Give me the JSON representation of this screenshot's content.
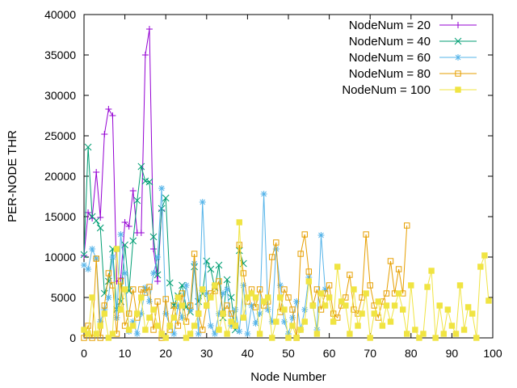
{
  "chart_data": {
    "type": "line",
    "title": "",
    "xlabel": "Node Number",
    "ylabel": "PER-NODE THR",
    "xlim": [
      0,
      100
    ],
    "ylim": [
      0,
      40000
    ],
    "xticks": [
      0,
      10,
      20,
      30,
      40,
      50,
      60,
      70,
      80,
      90,
      100
    ],
    "yticks": [
      0,
      5000,
      10000,
      15000,
      20000,
      25000,
      30000,
      35000,
      40000
    ],
    "grid": false,
    "legend_position": "top-right",
    "series": [
      {
        "name": "NodeNum = 20",
        "color": "#9400d3",
        "marker": "plus",
        "x": [
          0,
          1,
          2,
          3,
          4,
          5,
          6,
          7,
          8,
          9,
          10,
          11,
          12,
          13,
          14,
          15,
          16,
          17,
          18,
          19
        ],
        "y": [
          10200,
          15500,
          14800,
          20500,
          14900,
          25200,
          28300,
          27500,
          7000,
          7400,
          14300,
          13800,
          18200,
          13000,
          13000,
          35000,
          38200,
          11000,
          7000,
          15800
        ]
      },
      {
        "name": "NodeNum = 40",
        "color": "#009e73",
        "marker": "x",
        "x": [
          0,
          1,
          2,
          3,
          4,
          5,
          6,
          7,
          8,
          9,
          10,
          11,
          12,
          13,
          14,
          15,
          16,
          17,
          18,
          19,
          20,
          21,
          22,
          23,
          24,
          25,
          26,
          27,
          28,
          29,
          30,
          31,
          32,
          33,
          34,
          35,
          36,
          37,
          38,
          39
        ],
        "y": [
          10300,
          23600,
          15000,
          14500,
          13600,
          5500,
          7000,
          11000,
          3500,
          4500,
          11500,
          5800,
          12000,
          17000,
          21200,
          19400,
          19300,
          12500,
          7800,
          16000,
          17300,
          6800,
          4000,
          5200,
          6500,
          3800,
          3200,
          8800,
          4500,
          5500,
          9500,
          8500,
          6200,
          9000,
          2500,
          7200,
          5000,
          1000,
          10800,
          9200
        ]
      },
      {
        "name": "NodeNum = 60",
        "color": "#56b4e9",
        "marker": "star",
        "x": [
          0,
          1,
          2,
          3,
          4,
          5,
          6,
          7,
          8,
          9,
          10,
          11,
          12,
          13,
          14,
          15,
          16,
          17,
          18,
          19,
          20,
          21,
          22,
          23,
          24,
          25,
          26,
          27,
          28,
          29,
          30,
          31,
          32,
          33,
          34,
          35,
          36,
          37,
          38,
          39,
          40,
          41,
          42,
          43,
          44,
          45,
          46,
          47,
          48,
          49,
          50,
          51,
          52,
          53,
          54,
          55,
          56,
          57,
          58,
          59
        ],
        "y": [
          9000,
          8500,
          11000,
          9800,
          2000,
          3500,
          5000,
          10000,
          2500,
          12800,
          8000,
          800,
          2000,
          500,
          3000,
          6200,
          4500,
          8000,
          10000,
          18500,
          3000,
          1500,
          500,
          4000,
          2500,
          6500,
          3500,
          9200,
          500,
          16800,
          5500,
          1500,
          500,
          3000,
          5500,
          6000,
          1500,
          3500,
          800,
          6500,
          500,
          4000,
          1800,
          3000,
          17800,
          3500,
          2000,
          11000,
          6500,
          2000,
          500,
          2500,
          4500,
          1000,
          3500,
          7500,
          4000,
          1000,
          12700,
          6000
        ]
      },
      {
        "name": "NodeNum = 80",
        "color": "#e69f00",
        "marker": "square",
        "x": [
          0,
          1,
          2,
          3,
          4,
          5,
          6,
          7,
          8,
          9,
          10,
          11,
          12,
          13,
          14,
          15,
          16,
          17,
          18,
          19,
          20,
          21,
          22,
          23,
          24,
          25,
          26,
          27,
          28,
          29,
          30,
          31,
          32,
          33,
          34,
          35,
          36,
          37,
          38,
          39,
          40,
          41,
          42,
          43,
          44,
          45,
          46,
          47,
          48,
          49,
          50,
          51,
          52,
          53,
          54,
          55,
          56,
          57,
          58,
          59,
          60,
          61,
          62,
          63,
          64,
          65,
          66,
          67,
          68,
          69,
          70,
          71,
          72,
          73,
          74,
          75,
          76,
          77,
          78,
          79
        ],
        "y": [
          0,
          1500,
          0,
          9800,
          0,
          4000,
          8000,
          6500,
          500,
          7000,
          1500,
          3000,
          6000,
          2500,
          6000,
          5600,
          6300,
          1000,
          4500,
          0,
          4800,
          1000,
          4000,
          1500,
          5500,
          2000,
          4000,
          10400,
          3000,
          1000,
          4000,
          5500,
          5800,
          7000,
          3000,
          4000,
          3000,
          1500,
          11500,
          8000,
          4500,
          6000,
          3800,
          6000,
          4000,
          4500,
          10000,
          11800,
          3200,
          6000,
          5000,
          3500,
          0,
          10400,
          12800,
          8200,
          4000,
          6000,
          3500,
          5500,
          6500,
          3000,
          2500,
          4000,
          5000,
          7800,
          3500,
          3000,
          5000,
          12800,
          6500,
          4000,
          2500,
          4500,
          5500,
          9500,
          5500,
          8500,
          5500,
          13900
        ]
      },
      {
        "name": "NodeNum = 100",
        "color": "#f0e442",
        "marker": "filled-square",
        "x": [
          0,
          1,
          2,
          3,
          4,
          5,
          6,
          7,
          8,
          9,
          10,
          11,
          12,
          13,
          14,
          15,
          16,
          17,
          18,
          19,
          20,
          21,
          22,
          23,
          24,
          25,
          26,
          27,
          28,
          29,
          30,
          31,
          32,
          33,
          34,
          35,
          36,
          37,
          38,
          39,
          40,
          41,
          42,
          43,
          44,
          45,
          46,
          47,
          48,
          49,
          50,
          51,
          52,
          53,
          54,
          55,
          56,
          57,
          58,
          59,
          60,
          61,
          62,
          63,
          64,
          65,
          66,
          67,
          68,
          69,
          70,
          71,
          72,
          73,
          74,
          75,
          76,
          77,
          78,
          79,
          80,
          81,
          82,
          83,
          84,
          85,
          86,
          87,
          88,
          89,
          90,
          91,
          92,
          93,
          94,
          95,
          96,
          97,
          98,
          99
        ],
        "y": [
          1000,
          500,
          5000,
          500,
          1500,
          3000,
          0,
          500,
          11000,
          3500,
          6000,
          1000,
          1500,
          3000,
          5000,
          1000,
          2500,
          3500,
          1500,
          500,
          0,
          1500,
          2500,
          5000,
          4000,
          0,
          500,
          1500,
          3000,
          6000,
          4000,
          5000,
          6500,
          1000,
          3000,
          500,
          2000,
          1500,
          14300,
          2500,
          5000,
          5500,
          5000,
          500,
          4500,
          5000,
          0,
          2000,
          5000,
          3500,
          0,
          1500,
          0,
          1000,
          2000,
          7000,
          4000,
          500,
          5500,
          4000,
          5000,
          2000,
          8800,
          4500,
          4000,
          500,
          6000,
          1500,
          3000,
          5500,
          0,
          3000,
          4500,
          1500,
          4000,
          2000,
          4000,
          5500,
          3500,
          500,
          6500,
          1000,
          0,
          500,
          6300,
          8300,
          0,
          4000,
          500,
          3500,
          1500,
          500,
          6500,
          1000,
          3800,
          3000,
          0,
          8800,
          10200,
          4600
        ]
      }
    ]
  }
}
